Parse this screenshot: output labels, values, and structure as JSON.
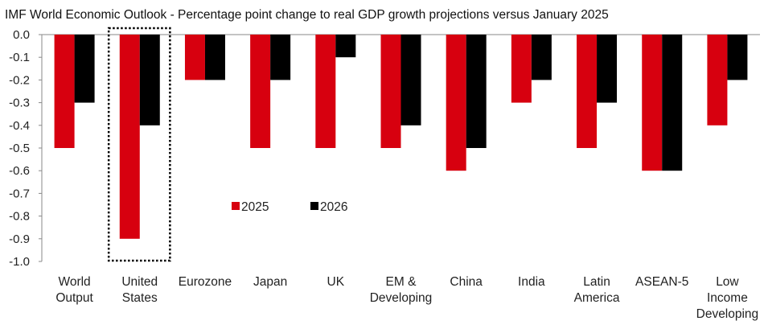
{
  "chart_data": {
    "type": "bar",
    "title": "IMF World Economic Outlook - Percentage point change to real GDP growth projections versus January 2025",
    "categories": [
      [
        "World",
        "Output"
      ],
      [
        "United",
        "States"
      ],
      [
        "Eurozone"
      ],
      [
        "Japan"
      ],
      [
        "UK"
      ],
      [
        "EM &",
        "Developing"
      ],
      [
        "China"
      ],
      [
        "India"
      ],
      [
        "Latin",
        "America"
      ],
      [
        "ASEAN-5"
      ],
      [
        "Low",
        "Income",
        "Developing"
      ]
    ],
    "series": [
      {
        "name": "2025",
        "color": "#d7000f",
        "values": [
          -0.5,
          -0.9,
          -0.2,
          -0.5,
          -0.5,
          -0.5,
          -0.6,
          -0.3,
          -0.5,
          -0.6,
          -0.4
        ]
      },
      {
        "name": "2026",
        "color": "#000000",
        "values": [
          -0.3,
          -0.4,
          -0.2,
          -0.2,
          -0.1,
          -0.4,
          -0.5,
          -0.2,
          -0.3,
          -0.6,
          -0.2
        ]
      }
    ],
    "ylim": [
      -1.0,
      0.0
    ],
    "yticks": [
      "0.0",
      "-0.1",
      "-0.2",
      "-0.3",
      "-0.4",
      "-0.5",
      "-0.6",
      "-0.7",
      "-0.8",
      "-0.9",
      "-1.0"
    ],
    "grid": false,
    "legend_position": "center",
    "highlight": {
      "category_index": 1,
      "style": "dotted-box"
    }
  }
}
